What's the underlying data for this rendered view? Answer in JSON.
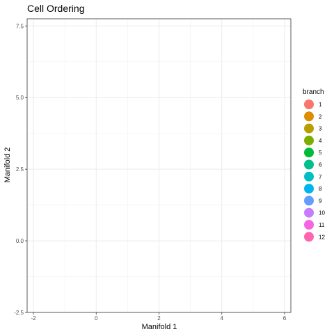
{
  "chart_data": {
    "type": "scatter",
    "title": "Cell Ordering",
    "xlabel": "Manifold 1",
    "ylabel": "Manifold 2",
    "xlim": [
      -2.2,
      6.2
    ],
    "ylim": [
      -2.5,
      7.75
    ],
    "x_ticks": [
      -2,
      0,
      2,
      4,
      6
    ],
    "x_tick_labels": [
      "-2",
      "0",
      "2",
      "4",
      "6"
    ],
    "x_minor": [
      -1,
      1,
      3,
      5
    ],
    "y_ticks": [
      -2.5,
      0,
      2.5,
      5,
      7.5
    ],
    "y_tick_labels": [
      "-2.5",
      "0.0",
      "2.5",
      "5.0",
      "7.5"
    ],
    "y_minor": [
      -1.25,
      1.25,
      3.75,
      6.25
    ],
    "grid": true,
    "points": [],
    "legend": {
      "title": "branch",
      "placement": "right",
      "items": [
        {
          "label": "1",
          "color": "#F8766D"
        },
        {
          "label": "2",
          "color": "#DE8C00"
        },
        {
          "label": "3",
          "color": "#B79F00"
        },
        {
          "label": "4",
          "color": "#7CAE00"
        },
        {
          "label": "5",
          "color": "#00BA38"
        },
        {
          "label": "6",
          "color": "#00C08B"
        },
        {
          "label": "7",
          "color": "#00BFC4"
        },
        {
          "label": "8",
          "color": "#00B4F0"
        },
        {
          "label": "9",
          "color": "#619CFF"
        },
        {
          "label": "10",
          "color": "#C77CFF"
        },
        {
          "label": "11",
          "color": "#F564E3"
        },
        {
          "label": "12",
          "color": "#FF64B0"
        }
      ]
    }
  }
}
